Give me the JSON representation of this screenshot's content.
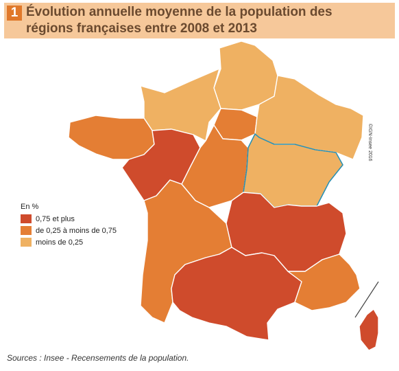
{
  "header": {
    "number": "1",
    "title_line1": "Évolution annuelle moyenne de la population des",
    "title_line2": "régions françaises entre 2008 et 2013"
  },
  "legend": {
    "title": "En %",
    "items": [
      {
        "label": "0,75 et plus",
        "color": "#cf4b2c"
      },
      {
        "label": "de 0,25 à moins de 0,75",
        "color": "#e47e34"
      },
      {
        "label": "moins de 0,25",
        "color": "#efb162"
      }
    ]
  },
  "regions": [
    {
      "id": "hauts-de-france",
      "class": "moins de 0,25"
    },
    {
      "id": "normandie",
      "class": "moins de 0,25"
    },
    {
      "id": "grand-est",
      "class": "moins de 0,25"
    },
    {
      "id": "bourgogne-franche-comte",
      "class": "moins de 0,25"
    },
    {
      "id": "ile-de-france",
      "class": "de 0,25 à moins de 0,75"
    },
    {
      "id": "bretagne",
      "class": "de 0,25 à moins de 0,75"
    },
    {
      "id": "centre-val-de-loire",
      "class": "de 0,25 à moins de 0,75"
    },
    {
      "id": "nouvelle-aquitaine",
      "class": "de 0,25 à moins de 0,75"
    },
    {
      "id": "provence-alpes-cote-d-azur",
      "class": "de 0,25 à moins de 0,75"
    },
    {
      "id": "pays-de-la-loire",
      "class": "0,75 et plus"
    },
    {
      "id": "auvergne-rhone-alpes",
      "class": "0,75 et plus"
    },
    {
      "id": "occitanie",
      "class": "0,75 et plus"
    },
    {
      "id": "corse",
      "class": "0,75 et plus"
    }
  ],
  "colors": {
    "high": "#cf4b2c",
    "mid": "#e47e34",
    "low": "#efb162",
    "highlight_border": "#2a8fb0",
    "title_band": "#f6c89a",
    "title_number_bg": "#e0782a"
  },
  "copyright": "©IGN-Insee 2016",
  "source": "Sources : Insee - Recensements de la population."
}
